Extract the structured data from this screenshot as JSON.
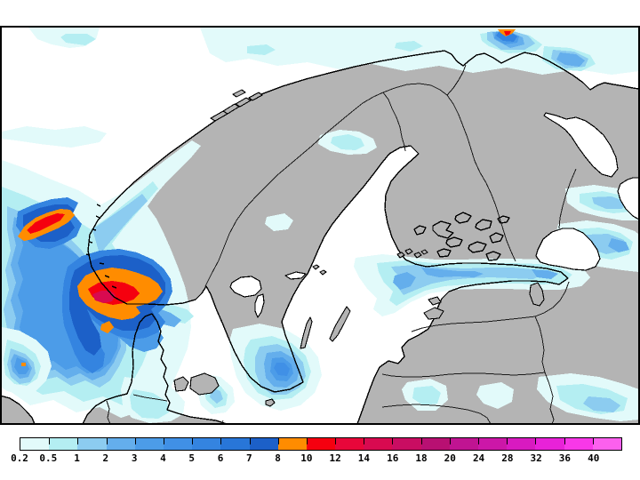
{
  "figure": {
    "kind": "precipitation-forecast-map",
    "visible_text_other_than_scale": ""
  },
  "map": {
    "land_color": "#b4b4b4",
    "sea_color": "#ffffff",
    "coast_color": "#000000",
    "border_color": "#1a1a1a"
  },
  "colorbar": {
    "orientation": "horizontal",
    "labels": [
      "0.2",
      "0.5",
      "1",
      "2",
      "3",
      "4",
      "5",
      "6",
      "7",
      "8",
      "10",
      "12",
      "14",
      "16",
      "18",
      "20",
      "24",
      "28",
      "32",
      "36",
      "40"
    ],
    "colors": [
      "#e2fafa",
      "#b4eef2",
      "#8cccf0",
      "#64aeec",
      "#4c9ce8",
      "#4090e6",
      "#3484e0",
      "#2876d8",
      "#1c60c8",
      "#ff8c00",
      "#f5000f",
      "#e8063a",
      "#d80a50",
      "#c90d62",
      "#b81072",
      "#c01492",
      "#cc17a8",
      "#d81ac0",
      "#e822d8",
      "#f838e8",
      "#fc60ee"
    ]
  }
}
